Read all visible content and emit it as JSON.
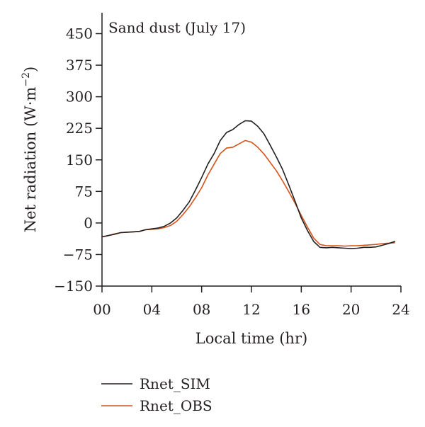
{
  "chart_data": {
    "type": "line",
    "title": "Sand dust (July 17)",
    "xlabel": "Local time (hr)",
    "ylabel": "Net radiation (W·m⁻²)",
    "ylabel_main": "Net radiation (W·m",
    "ylabel_sup": "−2",
    "ylabel_close": ")",
    "xlim": [
      0,
      24
    ],
    "ylim": [
      -150,
      450
    ],
    "x_ticks": [
      0,
      4,
      8,
      12,
      16,
      20,
      24
    ],
    "x_tick_labels": [
      "00",
      "04",
      "08",
      "12",
      "16",
      "20",
      "24"
    ],
    "y_ticks": [
      -150,
      -75,
      0,
      75,
      150,
      225,
      300,
      375,
      450
    ],
    "y_tick_labels": [
      "−150",
      "−75",
      "0",
      "75",
      "150",
      "225",
      "300",
      "375",
      "450"
    ],
    "grid": false,
    "legend_position": "bottom-left",
    "series": [
      {
        "name": "Rnet_SIM",
        "color": "#231f20",
        "x": [
          0,
          0.5,
          1,
          1.5,
          2,
          2.5,
          3,
          3.5,
          4,
          4.5,
          5,
          5.5,
          6,
          6.5,
          7,
          7.5,
          8,
          8.5,
          9,
          9.5,
          10,
          10.5,
          11,
          11.5,
          12,
          12.5,
          13,
          13.5,
          14,
          14.5,
          15,
          15.5,
          16,
          16.5,
          17,
          17.5,
          18,
          18.5,
          19,
          19.5,
          20,
          20.5,
          21,
          21.5,
          22,
          22.5,
          23,
          23.5
        ],
        "values": [
          -33,
          -30,
          -27,
          -23,
          -22,
          -21,
          -20,
          -16,
          -14,
          -12,
          -8,
          0,
          12,
          30,
          50,
          78,
          108,
          140,
          165,
          196,
          215,
          222,
          234,
          243,
          242,
          230,
          212,
          185,
          157,
          127,
          90,
          52,
          12,
          -18,
          -44,
          -58,
          -59,
          -58,
          -59,
          -60,
          -61,
          -60,
          -58,
          -58,
          -57,
          -53,
          -49,
          -44
        ]
      },
      {
        "name": "Rnet_OBS",
        "color": "#d4531a",
        "x": [
          0,
          0.5,
          1,
          1.5,
          2,
          2.5,
          3,
          3.5,
          4,
          4.5,
          5,
          5.5,
          6,
          6.5,
          7,
          7.5,
          8,
          8.5,
          9,
          9.5,
          10,
          10.5,
          11,
          11.5,
          12,
          12.5,
          13,
          13.5,
          14,
          14.5,
          15,
          15.5,
          16,
          16.5,
          17,
          17.5,
          18,
          18.5,
          19,
          19.5,
          20,
          20.5,
          21,
          21.5,
          22,
          22.5,
          23,
          23.5
        ],
        "values": [
          -33,
          -30,
          -26,
          -23,
          -22,
          -21,
          -20,
          -16,
          -15,
          -14,
          -11,
          -6,
          4,
          20,
          38,
          60,
          84,
          114,
          140,
          165,
          178,
          180,
          188,
          196,
          192,
          180,
          164,
          144,
          124,
          100,
          74,
          47,
          18,
          -10,
          -36,
          -51,
          -54,
          -54,
          -54,
          -55,
          -54,
          -54,
          -53,
          -52,
          -51,
          -49,
          -48,
          -47
        ]
      }
    ]
  }
}
